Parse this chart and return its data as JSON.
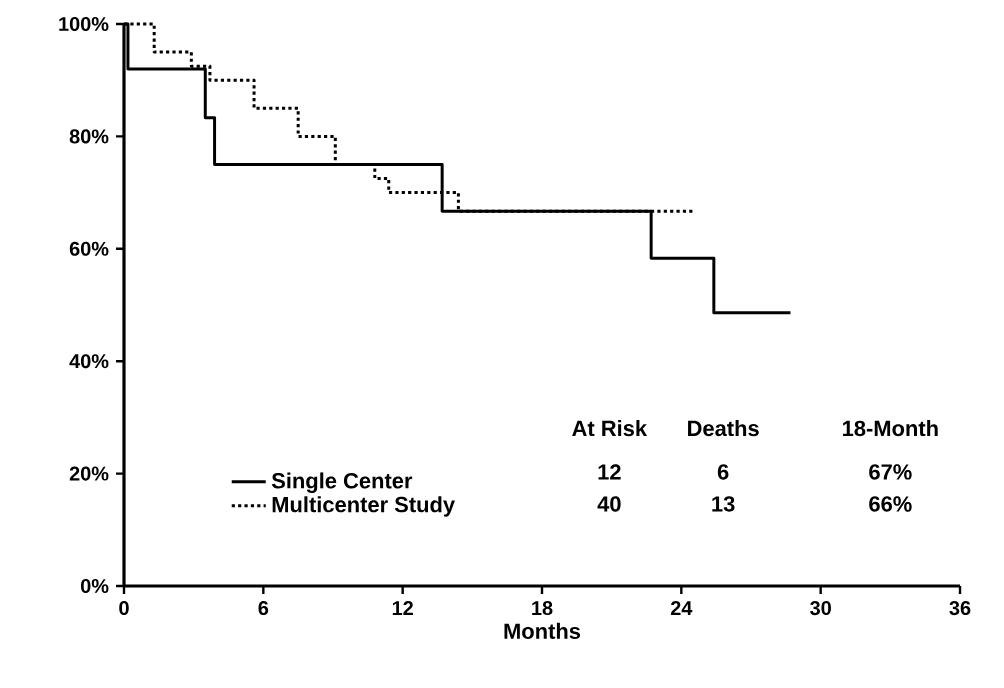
{
  "chart_data": {
    "type": "step",
    "xlabel": "Months",
    "x": [
      0,
      0.17,
      3.5,
      3.9,
      13.7,
      22.7,
      25.4,
      28.7
    ],
    "series": [
      {
        "name": "Single Center",
        "color": "#000000",
        "line_style": "solid",
        "values": [
          100,
          92,
          83.3,
          75,
          66.7,
          58.3,
          48.6,
          48.6
        ]
      },
      {
        "name": "Multicenter Study",
        "color": "#000000",
        "line_style": "dotted",
        "x": [
          0,
          1.3,
          2.9,
          3.7,
          5.6,
          7.5,
          9.1,
          10.8,
          11.4,
          14.4,
          24.6
        ],
        "values": [
          100,
          95,
          92.5,
          90,
          85,
          80,
          75,
          72.5,
          70,
          66.7,
          66.7
        ]
      }
    ],
    "xlim": [
      0,
      36
    ],
    "xticks": [
      0,
      6,
      12,
      18,
      24,
      30,
      36
    ],
    "ylim": [
      0,
      100
    ],
    "yticks": [
      {
        "value": 0,
        "label": "0%"
      },
      {
        "value": 20,
        "label": "20%"
      },
      {
        "value": 40,
        "label": "40%"
      },
      {
        "value": 60,
        "label": "60%"
      },
      {
        "value": 80,
        "label": "80%"
      },
      {
        "value": 100,
        "label": "100%"
      }
    ],
    "annotations": [
      "At Risk",
      "Deaths",
      "18-Month",
      "12",
      "6",
      "67%",
      "40",
      "13",
      "66%"
    ],
    "grid": false,
    "legend": "bottom left",
    "marker": "none"
  }
}
